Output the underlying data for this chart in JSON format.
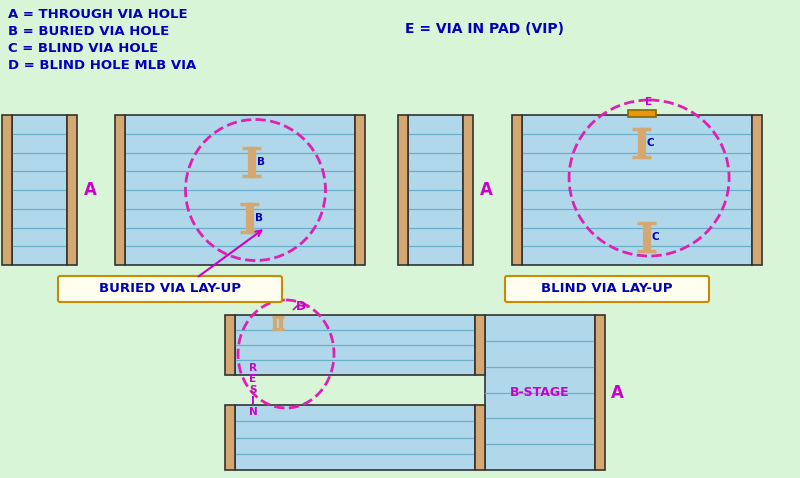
{
  "bg_color": "#d8f5d8",
  "board_fill": "#b0d8ea",
  "board_stroke": "#333333",
  "copper_fill": "#d4a870",
  "layer_line_color": "#6ab0cc",
  "dashed_circle_color": "#e020b0",
  "label_color": "#0000bb",
  "label_color_mg": "#cc00cc",
  "box_fill": "#fffff0",
  "box_stroke": "#cc8800",
  "title_buried": "BURIED VIA LAY-UP",
  "title_blind": "BLIND VIA LAY-UP",
  "legend": [
    "A = THROUGH VIA HOLE",
    "B = BURIED VIA HOLE",
    "C = BLIND VIA HOLE",
    "D = BLIND HOLE MLB VIA"
  ],
  "legend_e": "E = VIA IN PAD (VIP)"
}
